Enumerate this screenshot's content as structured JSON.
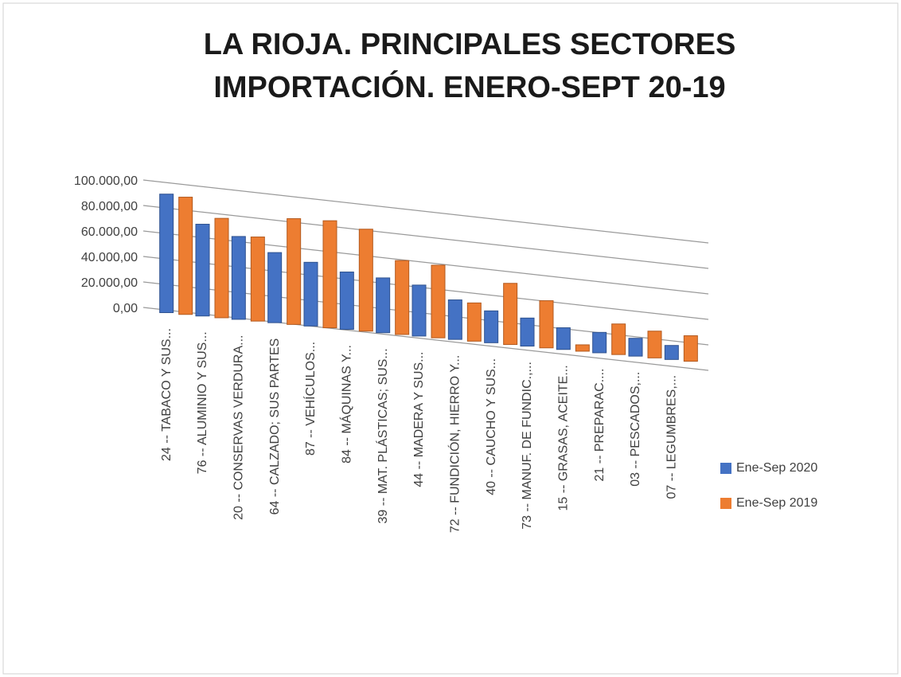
{
  "chart_data": {
    "type": "bar",
    "title": [
      "LA RIOJA. PRINCIPALES SECTORES",
      "IMPORTACIÓN. ENERO-SEPT 20-19"
    ],
    "categories": [
      "24 -- TABACO Y SUS...",
      "76 -- ALUMINIO Y SUS...",
      "20 -- CONSERVAS VERDURA...",
      "64 -- CALZADO; SUS PARTES",
      "87 -- VEHÍCULOS...",
      "84 -- MÁQUINAS Y...",
      "39 -- MAT. PLÁSTICAS; SUS...",
      "44 -- MADERA Y SUS...",
      "72 -- FUNDICIÓN, HIERRO Y...",
      "40 -- CAUCHO Y SUS...",
      "73 -- MANUF. DE FUNDIC.,...",
      "15 -- GRASAS, ACEITE...",
      "21 -- PREPARAC....",
      "03 -- PESCADOS,...",
      "07 -- LEGUMBRES,..."
    ],
    "series": [
      {
        "name": "Ene-Sep 2020",
        "color": "#4472c4",
        "values": [
          93000,
          72000,
          65000,
          55000,
          50000,
          45000,
          43000,
          40000,
          31000,
          25000,
          22000,
          17000,
          16000,
          14000,
          11000
        ]
      },
      {
        "name": "Ene-Sep 2019",
        "color": "#ed7d31",
        "values": [
          92000,
          78000,
          66000,
          83000,
          84000,
          80000,
          58000,
          57000,
          30000,
          48000,
          37000,
          5000,
          24000,
          21000,
          20000
        ]
      }
    ],
    "ylim": [
      0,
      100000
    ],
    "yticks": [
      {
        "value": 0,
        "label": "0,00"
      },
      {
        "value": 20000,
        "label": "20.000,00"
      },
      {
        "value": 40000,
        "label": "40.000,00"
      },
      {
        "value": 60000,
        "label": "60.000,00"
      },
      {
        "value": 80000,
        "label": "80.000,00"
      },
      {
        "value": 100000,
        "label": "100.000,00"
      }
    ],
    "grid": true,
    "legend": "right"
  }
}
